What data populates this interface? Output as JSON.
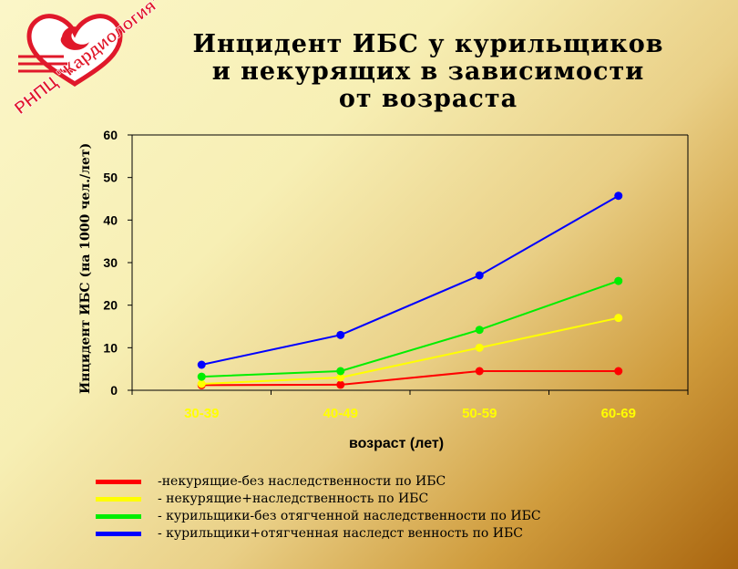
{
  "logo": {
    "text": "РНПЦ \"Кардиология\"",
    "colors": {
      "red": "#e0182a",
      "white": "#ffffff"
    }
  },
  "title_lines": [
    "Инцидент ИБС у курильщиков",
    "и некурящих в зависимости",
    "от возраста"
  ],
  "chart_data": {
    "type": "line",
    "title": "Инцидент ИБС у курильщиков и некурящих в зависимости от возраста",
    "xlabel": "возраст (лет)",
    "ylabel": "Инцидент ИБС (на 1000 чел./лет)",
    "categories": [
      "30-39",
      "40-49",
      "50-59",
      "60-69"
    ],
    "ylim": [
      0,
      60
    ],
    "yticks": [
      0,
      10,
      20,
      30,
      40,
      50,
      60
    ],
    "grid": false,
    "legend_position": "bottom",
    "series": [
      {
        "name": "-некурящие-без наследственности по ИБС",
        "color": "#ff0000",
        "values": [
          1.2,
          1.3,
          4.5,
          4.5
        ]
      },
      {
        "name": "- некурящие+наследственность по ИБС",
        "color": "#ffff00",
        "values": [
          1.5,
          3.0,
          10.0,
          17.0
        ]
      },
      {
        "name": "- курильщики-без отягченной наследственности по ИБС",
        "color": "#00ee00",
        "values": [
          3.2,
          4.5,
          14.2,
          25.7
        ]
      },
      {
        "name": "- курильщики+отягченная наследст венность по ИБС",
        "color": "#0000ff",
        "values": [
          6.0,
          13.0,
          27.0,
          45.7
        ]
      }
    ]
  },
  "colors": {
    "tick_label": "#ffff00",
    "axis": "#000000"
  }
}
